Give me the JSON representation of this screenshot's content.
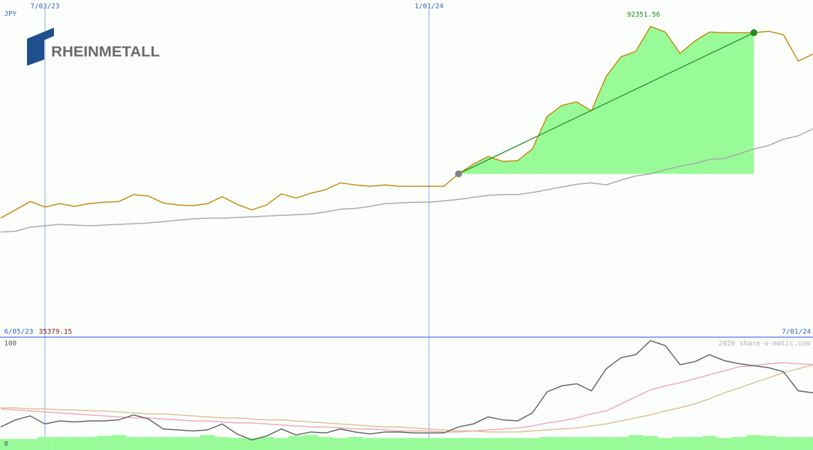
{
  "logo": "RHEINMETALL",
  "chart_data": {
    "type": "line",
    "currency": "JPY",
    "credit": "2026 share-o-matic.com",
    "categories": [
      "6/05/23",
      null,
      null,
      "7/03/23",
      null,
      null,
      null,
      null,
      null,
      null,
      null,
      null,
      null,
      null,
      null,
      null,
      null,
      null,
      null,
      null,
      null,
      null,
      null,
      null,
      null,
      null,
      null,
      null,
      null,
      "1/01/24",
      null,
      null,
      null,
      null,
      null,
      null,
      null,
      null,
      null,
      null,
      null,
      null,
      null,
      null,
      null,
      null,
      null,
      null,
      null,
      null,
      null,
      null,
      null,
      null,
      null,
      "7/01/24"
    ],
    "ylim": [
      0,
      100000
    ],
    "series": [
      {
        "color": "#c8860b",
        "values": [
          35379.15,
          37843,
          40311,
          38666,
          39694,
          38872,
          39694,
          40106,
          40311,
          42368,
          41957,
          39900,
          39283,
          39077,
          39694,
          41751,
          39489,
          37843,
          39283,
          42574,
          41340,
          42779,
          43808,
          45864,
          45247,
          44836,
          45247,
          44836,
          44836,
          44836,
          44836,
          48538,
          51418,
          53680,
          52240,
          52446,
          55942,
          65609,
          68899,
          69928,
          67254,
          77538,
          83296,
          84942,
          92351.56,
          90700,
          84325,
          88027,
          90700,
          90495,
          90495,
          90480,
          90906,
          89878,
          82062,
          84119
        ]
      },
      {
        "color": "#a8a8a8",
        "values": [
          31262,
          31468,
          32702,
          33113,
          33524,
          33319,
          33113,
          33319,
          33524,
          33730,
          33936,
          34347,
          34758,
          35170,
          35375,
          35375,
          35581,
          35787,
          35992,
          36198,
          36404,
          36609,
          37226,
          38049,
          38255,
          38872,
          39694,
          39900,
          40106,
          40106,
          40517,
          40928,
          41545,
          42162,
          42368,
          42368,
          42985,
          43808,
          44630,
          45453,
          45864,
          45247,
          46687,
          47921,
          48538,
          49772,
          50800,
          51623,
          52857,
          53063,
          54503,
          55942,
          56971,
          58822,
          59850,
          61907
        ]
      }
    ],
    "trend": {
      "values": [
        48538,
        90480
      ],
      "line_color": "#228b22",
      "fill": "#98fb98",
      "start_color": "#808080"
    },
    "peak_color": "#228b22",
    "low_color": "#8b1a1a",
    "lower": {
      "ylim": [
        0,
        100
      ],
      "yticks": [
        0,
        100
      ],
      "series": [
        {
          "type": "bar",
          "color": "#98fb98",
          "values": [
            2,
            2,
            2,
            4,
            4,
            4,
            4,
            5,
            6,
            4,
            4,
            4,
            4,
            4,
            6,
            4,
            3,
            3,
            4,
            3,
            5,
            6,
            4,
            3,
            4,
            3,
            3,
            3,
            3,
            3,
            3,
            3,
            3,
            3,
            3,
            3,
            3,
            4,
            4,
            4,
            4,
            4,
            4,
            6,
            5,
            3,
            4,
            4,
            5,
            3,
            4,
            6,
            5,
            4,
            4,
            4
          ]
        },
        {
          "type": "line",
          "color": "#dcc090",
          "values": [
            33,
            33,
            32,
            32,
            31,
            31,
            30,
            30,
            29,
            28,
            27,
            27,
            26,
            25,
            24,
            23,
            23,
            22,
            21,
            21,
            20,
            19,
            18,
            17,
            16,
            15,
            14,
            14,
            13,
            12,
            11,
            10,
            10,
            9,
            9,
            9,
            10,
            11,
            12,
            13,
            15,
            17,
            20,
            23,
            26,
            30,
            33,
            37,
            42,
            48,
            53,
            58,
            63,
            68,
            72,
            76
          ]
        },
        {
          "type": "line",
          "color": "#f4a6b8",
          "values": [
            32,
            31,
            30,
            29,
            28,
            27,
            26,
            25,
            24,
            23,
            23,
            22,
            21,
            20,
            20,
            19,
            18,
            18,
            17,
            16,
            15,
            14,
            14,
            13,
            12,
            12,
            11,
            10,
            10,
            10,
            9,
            9,
            10,
            11,
            12,
            13,
            15,
            18,
            20,
            23,
            27,
            30,
            37,
            44,
            51,
            55,
            58,
            62,
            66,
            70,
            74,
            75,
            77,
            78,
            77,
            76
          ]
        },
        {
          "type": "line",
          "color": "#606060",
          "values": [
            14,
            21,
            25,
            17,
            20,
            19,
            20,
            20,
            21,
            26,
            22,
            12,
            11,
            10,
            11,
            17,
            7,
            1,
            5,
            12,
            6,
            9,
            8,
            12,
            9,
            7,
            9,
            9,
            8,
            8,
            8,
            14,
            17,
            24,
            21,
            20,
            28,
            49,
            55,
            57,
            50,
            72,
            83,
            86,
            100,
            95,
            76,
            79,
            86,
            80,
            77,
            75,
            73,
            69,
            50,
            48
          ]
        }
      ]
    }
  }
}
